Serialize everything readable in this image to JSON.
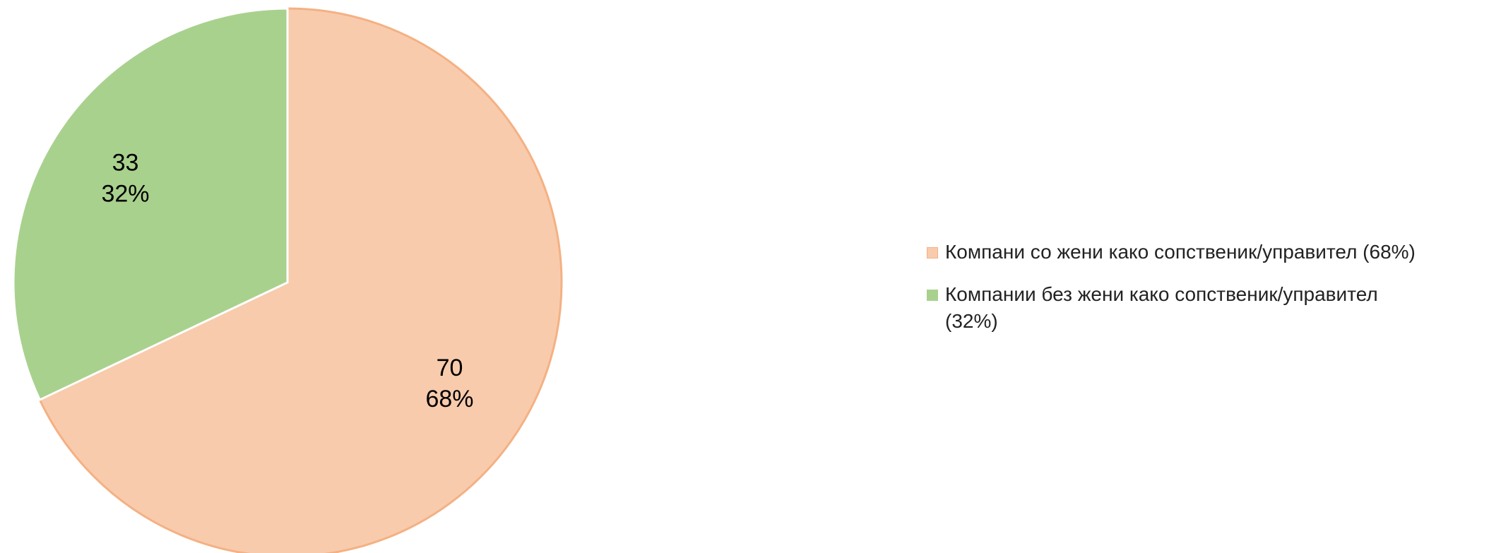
{
  "chart_data": {
    "type": "pie",
    "categories": [
      "Компани со жени како сопственик/управител (68%)",
      "Компании без жени како сопственик/управител (32%)"
    ],
    "values": [
      70,
      33
    ],
    "percent_labels": [
      "68%",
      "32%"
    ],
    "colors": [
      "#f8cbad",
      "#a9d18e"
    ],
    "legend": "right"
  }
}
